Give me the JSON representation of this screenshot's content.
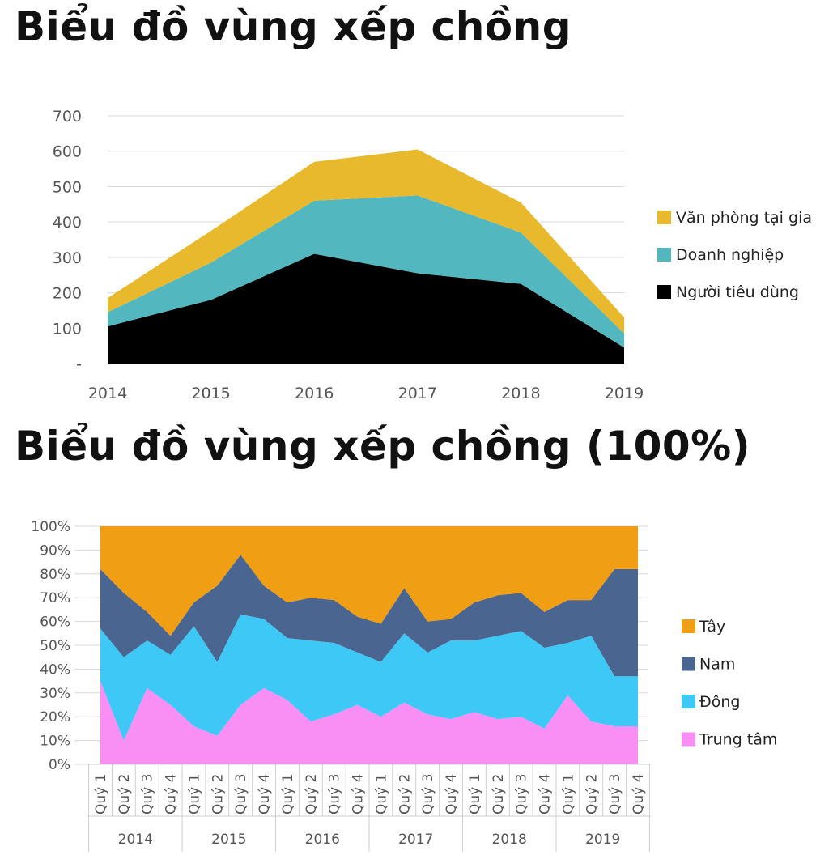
{
  "title1": "Biểu đồ vùng xếp chồng",
  "title2": "Biểu đồ vùng xếp chồng (100%)",
  "chart_data": [
    {
      "type": "area",
      "stacked": true,
      "x": [
        "2014",
        "2015",
        "2016",
        "2017",
        "2018",
        "2019"
      ],
      "yticks": [
        "-",
        "100",
        "200",
        "300",
        "400",
        "500",
        "600",
        "700"
      ],
      "ylim": [
        0,
        700
      ],
      "grid": true,
      "legend_position": "right",
      "series": [
        {
          "name": "Người tiêu dùng",
          "values": [
            105,
            180,
            310,
            255,
            225,
            45
          ],
          "color": "#000000"
        },
        {
          "name": "Doanh nghiệp",
          "values": [
            40,
            105,
            150,
            220,
            145,
            40
          ],
          "color": "#53b7bf"
        },
        {
          "name": "Văn phòng tại gia",
          "values": [
            40,
            90,
            110,
            130,
            85,
            45
          ],
          "color": "#e8b92c"
        }
      ]
    },
    {
      "type": "area",
      "stacked_percent": true,
      "x": [
        "Quý 1",
        "Quý 2",
        "Quý 3",
        "Quý 4",
        "Quý 1",
        "Quý 2",
        "Quý 3",
        "Quý 4",
        "Quý 1",
        "Quý 2",
        "Quý 3",
        "Quý 4",
        "Quý 1",
        "Quý 2",
        "Quý 3",
        "Quý 4",
        "Quý 1",
        "Quý 2",
        "Quý 3",
        "Quý 4",
        "Quý 1",
        "Quý 2",
        "Quý 3",
        "Quý 4"
      ],
      "years": [
        "2014",
        "2015",
        "2016",
        "2017",
        "2018",
        "2019"
      ],
      "yticks": [
        "0%",
        "10%",
        "20%",
        "30%",
        "40%",
        "50%",
        "60%",
        "70%",
        "80%",
        "90%",
        "100%"
      ],
      "ylim": [
        0,
        100
      ],
      "grid": true,
      "legend_position": "right",
      "series": [
        {
          "name": "Trung tâm",
          "values": [
            35,
            10,
            32,
            25,
            16,
            12,
            25,
            32,
            27,
            18,
            21,
            25,
            20,
            26,
            21,
            19,
            22,
            19,
            20,
            15,
            29,
            18,
            16,
            16
          ],
          "color": "#f98ef5"
        },
        {
          "name": "Đông",
          "values": [
            22,
            35,
            20,
            21,
            42,
            31,
            38,
            29,
            26,
            34,
            30,
            22,
            23,
            29,
            26,
            33,
            30,
            35,
            36,
            34,
            22,
            36,
            21,
            21
          ],
          "color": "#3ec8f5"
        },
        {
          "name": "Nam",
          "values": [
            25,
            27,
            12,
            8,
            10,
            32,
            25,
            14,
            15,
            18,
            18,
            15,
            16,
            19,
            13,
            9,
            16,
            17,
            16,
            15,
            18,
            15,
            45,
            45
          ],
          "color": "#4b6591"
        },
        {
          "name": "Tây",
          "values": [
            18,
            28,
            36,
            46,
            32,
            25,
            12,
            25,
            32,
            30,
            31,
            38,
            41,
            26,
            40,
            39,
            32,
            29,
            28,
            36,
            31,
            31,
            18,
            18
          ],
          "color": "#f09e14"
        }
      ]
    }
  ]
}
